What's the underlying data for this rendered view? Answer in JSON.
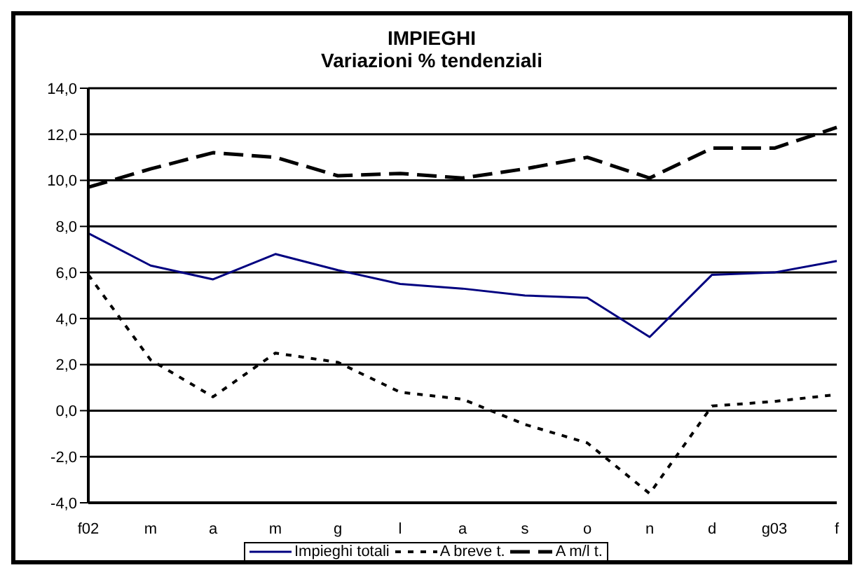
{
  "chart_data": {
    "type": "line",
    "title": "IMPIEGHI",
    "subtitle": "Variazioni % tendenziali",
    "categories": [
      "f02",
      "m",
      "a",
      "m",
      "g",
      "l",
      "a",
      "s",
      "o",
      "n",
      "d",
      "g03",
      "f"
    ],
    "series": [
      {
        "name": "Impieghi totali",
        "color": "#000080",
        "line_style": "solid",
        "values": [
          7.7,
          6.3,
          5.7,
          6.8,
          6.1,
          5.5,
          5.3,
          5.0,
          4.9,
          3.2,
          5.9,
          6.0,
          6.5
        ]
      },
      {
        "name": "A breve t.",
        "color": "#000000",
        "line_style": "dotted",
        "values": [
          5.9,
          2.2,
          0.6,
          2.5,
          2.1,
          0.8,
          0.5,
          -0.6,
          -1.4,
          -3.6,
          0.2,
          0.4,
          0.7
        ]
      },
      {
        "name": "A m/l t.",
        "color": "#000000",
        "line_style": "dashed",
        "values": [
          9.7,
          10.5,
          11.2,
          11.0,
          10.2,
          10.3,
          10.1,
          10.5,
          11.0,
          10.1,
          11.4,
          11.4,
          12.3
        ]
      }
    ],
    "ylim": [
      -4,
      14
    ],
    "yticks": [
      {
        "value": -4,
        "label": "-4,0"
      },
      {
        "value": -2,
        "label": "-2,0"
      },
      {
        "value": 0,
        "label": "0,0"
      },
      {
        "value": 2,
        "label": "2,0"
      },
      {
        "value": 4,
        "label": "4,0"
      },
      {
        "value": 6,
        "label": "6,0"
      },
      {
        "value": 8,
        "label": "8,0"
      },
      {
        "value": 10,
        "label": "10,0"
      },
      {
        "value": 12,
        "label": "12,0"
      },
      {
        "value": 14,
        "label": "14,0"
      }
    ],
    "grid": "y",
    "legend": "bottom",
    "marker": "none"
  }
}
